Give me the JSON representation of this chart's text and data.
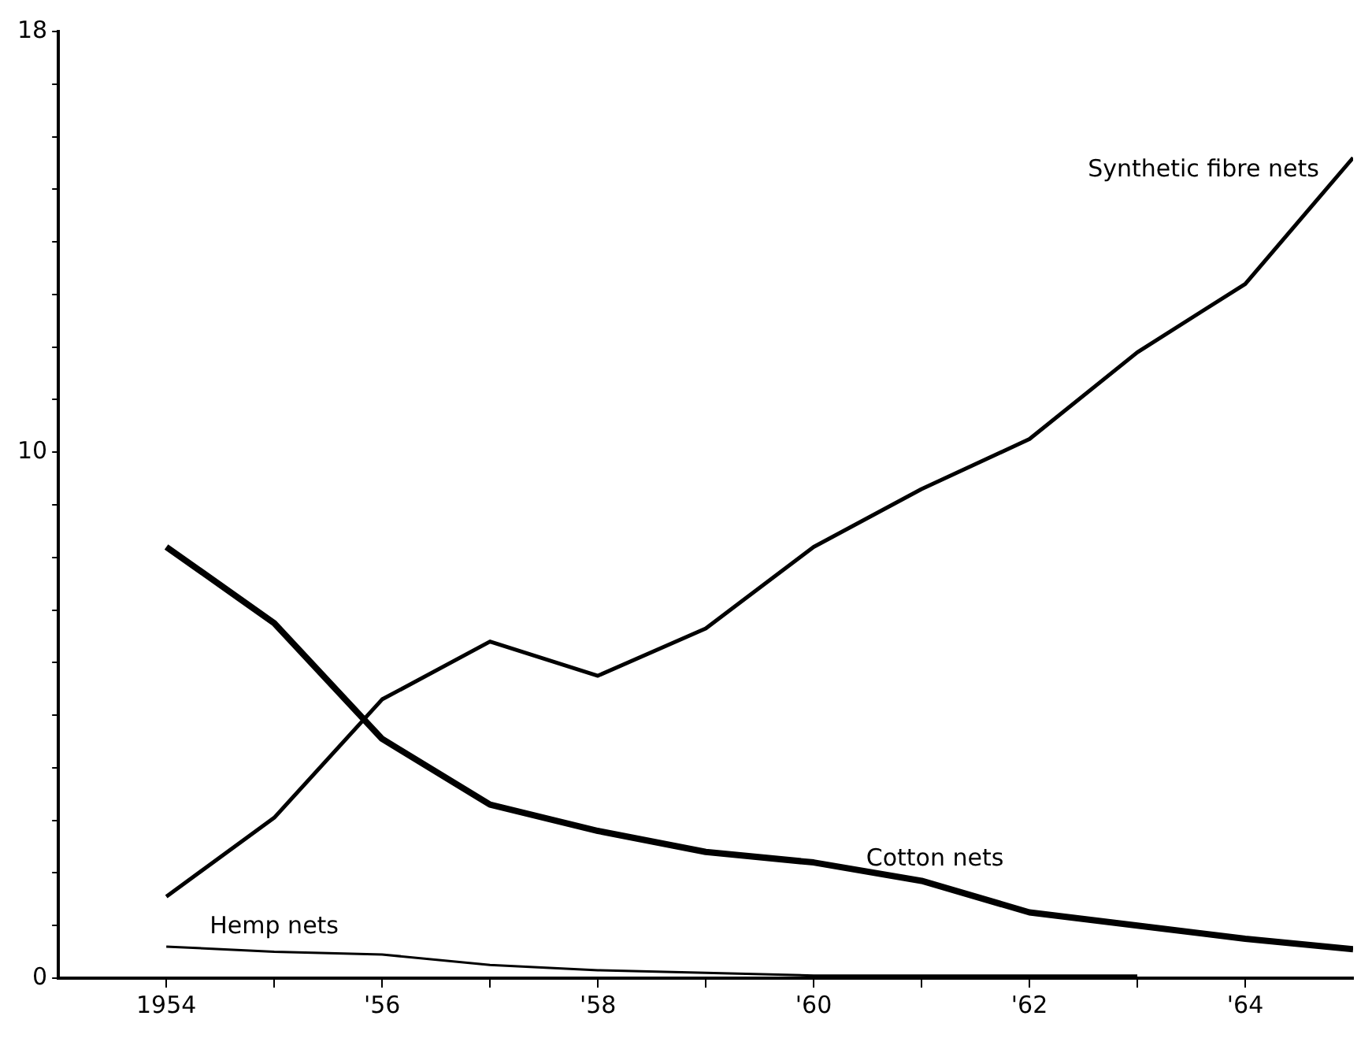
{
  "chart_data": {
    "type": "line",
    "x": [
      1954,
      1955,
      1956,
      1957,
      1958,
      1959,
      1960,
      1961,
      1962,
      1963,
      1964,
      1965
    ],
    "series": [
      {
        "name": "Synthetic fibre nets",
        "color": "#000000",
        "values": [
          1.55,
          3.05,
          5.3,
          6.4,
          5.75,
          6.65,
          8.2,
          9.3,
          10.25,
          11.9,
          13.2,
          15.6
        ]
      },
      {
        "name": "Cotton nets",
        "color": "#000000",
        "values": [
          8.2,
          6.75,
          4.55,
          3.3,
          2.8,
          2.4,
          2.2,
          1.85,
          1.25,
          1.0,
          0.75,
          0.55
        ]
      },
      {
        "name": "Hemp nets",
        "color": "#000000",
        "values": [
          0.6,
          0.5,
          0.45,
          0.25,
          0.15,
          0.1,
          0.05,
          0.05,
          0.05,
          0.05,
          null,
          null
        ]
      }
    ],
    "xlim": [
      1953,
      1965
    ],
    "xticks": [
      {
        "value": 1954,
        "label": "1954"
      },
      {
        "value": 1955,
        "label": null
      },
      {
        "value": 1956,
        "label": "'56"
      },
      {
        "value": 1957,
        "label": null
      },
      {
        "value": 1958,
        "label": "'58"
      },
      {
        "value": 1959,
        "label": null
      },
      {
        "value": 1960,
        "label": "'60"
      },
      {
        "value": 1961,
        "label": null
      },
      {
        "value": 1962,
        "label": "'62"
      },
      {
        "value": 1963,
        "label": null
      },
      {
        "value": 1964,
        "label": "'64"
      }
    ],
    "ylim": [
      0,
      18
    ],
    "yticks": [
      0,
      {
        "value": 1,
        "label": null
      },
      {
        "value": 2,
        "label": null
      },
      {
        "value": 3,
        "label": null
      },
      {
        "value": 4,
        "label": null
      },
      {
        "value": 5,
        "label": null
      },
      {
        "value": 6,
        "label": null
      },
      {
        "value": 7,
        "label": null
      },
      {
        "value": 8,
        "label": null
      },
      {
        "value": 9,
        "label": null
      },
      10,
      {
        "value": 11,
        "label": null
      },
      {
        "value": 12,
        "label": null
      },
      {
        "value": 13,
        "label": null
      },
      {
        "value": 14,
        "label": null
      },
      {
        "value": 15,
        "label": null
      },
      {
        "value": 16,
        "label": null
      },
      {
        "value": 17,
        "label": null
      },
      18
    ],
    "grid": false,
    "legend": false,
    "marker": "none",
    "line_style": "solid"
  }
}
